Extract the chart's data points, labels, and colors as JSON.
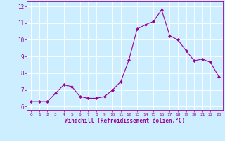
{
  "x": [
    0,
    1,
    2,
    3,
    4,
    5,
    6,
    7,
    8,
    9,
    10,
    11,
    12,
    13,
    14,
    15,
    16,
    17,
    18,
    19,
    20,
    21,
    22,
    23
  ],
  "y": [
    6.3,
    6.3,
    6.3,
    6.8,
    7.3,
    7.2,
    6.6,
    6.5,
    6.5,
    6.6,
    7.0,
    7.5,
    8.8,
    10.65,
    10.9,
    11.1,
    11.8,
    10.25,
    10.0,
    9.35,
    8.75,
    8.85,
    8.65,
    7.8
  ],
  "line_color": "#990099",
  "marker": "D",
  "marker_size": 2,
  "bg_color": "#cceeff",
  "grid_color": "#ffffff",
  "xlabel": "Windchill (Refroidissement éolien,°C)",
  "xlabel_color": "#990099",
  "tick_color": "#990099",
  "xlim": [
    -0.5,
    23.5
  ],
  "ylim": [
    5.8,
    12.3
  ],
  "yticks": [
    6,
    7,
    8,
    9,
    10,
    11,
    12
  ],
  "xticks": [
    0,
    1,
    2,
    3,
    4,
    5,
    6,
    7,
    8,
    9,
    10,
    11,
    12,
    13,
    14,
    15,
    16,
    17,
    18,
    19,
    20,
    21,
    22,
    23
  ],
  "xtick_labels": [
    "0",
    "1",
    "2",
    "3",
    "4",
    "5",
    "6",
    "7",
    "8",
    "9",
    "10",
    "11",
    "12",
    "13",
    "14",
    "15",
    "16",
    "17",
    "18",
    "19",
    "20",
    "21",
    "22",
    "23"
  ]
}
